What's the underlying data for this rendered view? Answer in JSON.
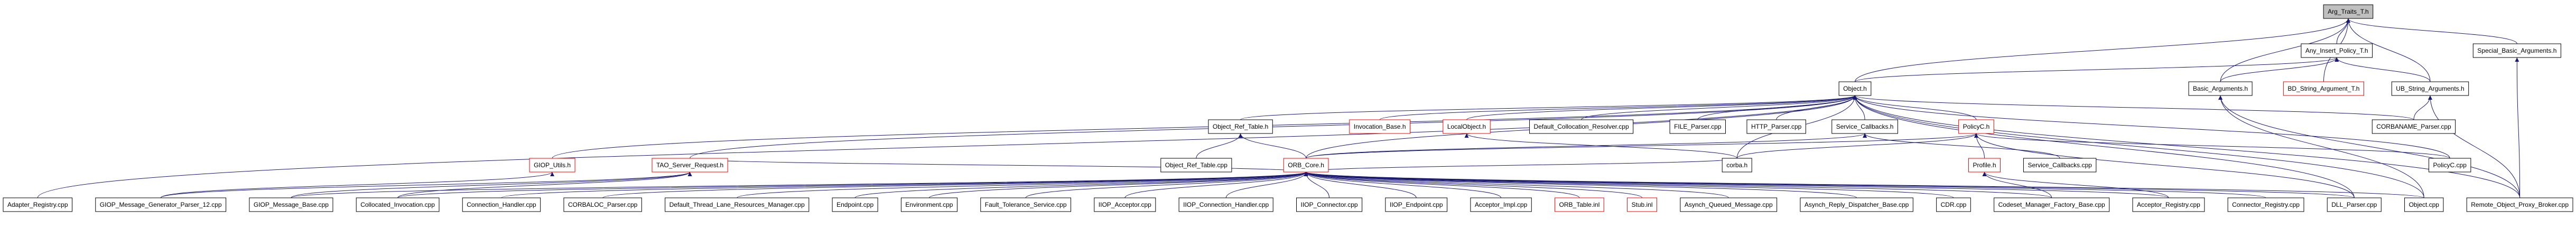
{
  "nodes": [
    "Arg_Traits_T.h",
    "Any_Insert_Policy_T.h",
    "Special_Basic_Arguments.h",
    "Object.h",
    "Basic_Arguments.h",
    "BD_String_Argument_T.h",
    "UB_String_Arguments.h",
    "Object_Ref_Table.h",
    "Invocation_Base.h",
    "LocalObject.h",
    "Default_Collocation_Resolver.cpp",
    "FILE_Parser.cpp",
    "HTTP_Parser.cpp",
    "Service_Callbacks.h",
    "PolicyC.h",
    "CORBANAME_Parser.cpp",
    "GIOP_Utils.h",
    "TAO_Server_Request.h",
    "Object_Ref_Table.cpp",
    "ORB_Core.h",
    "corba.h",
    "Profile.h",
    "Service_Callbacks.cpp",
    "PolicyC.cpp",
    "Adapter_Registry.cpp",
    "GIOP_Message_Generator_Parser_12.cpp",
    "GIOP_Message_Base.cpp",
    "Collocated_Invocation.cpp",
    "Connection_Handler.cpp",
    "CORBALOC_Parser.cpp",
    "Default_Thread_Lane_Resources_Manager.cpp",
    "Endpoint.cpp",
    "Environment.cpp",
    "Fault_Tolerance_Service.cpp",
    "IIOP_Acceptor.cpp",
    "IIOP_Connection_Handler.cpp",
    "IIOP_Connector.cpp",
    "IIOP_Endpoint.cpp",
    "Acceptor_Impl.cpp",
    "ORB_Table.inl",
    "Stub.inl",
    "Asynch_Queued_Message.cpp",
    "Asynch_Reply_Dispatcher_Base.cpp",
    "CDR.cpp",
    "Codeset_Manager_Factory_Base.cpp",
    "Acceptor_Registry.cpp",
    "Connector_Registry.cpp",
    "DLL_Parser.cpp",
    "Object.cpp",
    "Remote_Object_Proxy_Broker.cpp"
  ]
}
